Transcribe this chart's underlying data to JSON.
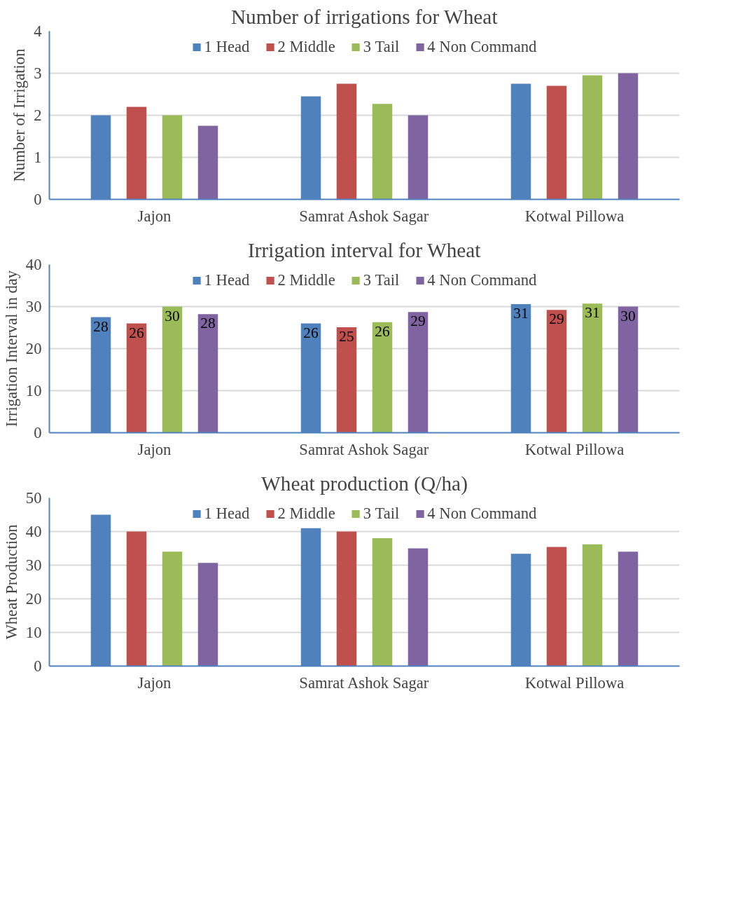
{
  "chart_data": [
    {
      "type": "bar",
      "title": "Number of irrigations for Wheat",
      "ylabel": "Number of Irrigation",
      "categories": [
        "Jajon",
        "Samrat Ashok Sagar",
        "Kotwal Pillowa"
      ],
      "ylim": [
        0,
        4
      ],
      "yticks": [
        0,
        1,
        2,
        3,
        4
      ],
      "grid": "y",
      "legend": "top",
      "series": [
        {
          "name": "1 Head",
          "color": "#4f81bd",
          "values": [
            2,
            2.45,
            2.75
          ]
        },
        {
          "name": "2 Middle",
          "color": "#c0504d",
          "values": [
            2.2,
            2.75,
            2.7
          ]
        },
        {
          "name": "3 Tail",
          "color": "#9bbb59",
          "values": [
            2,
            2.27,
            2.95
          ]
        },
        {
          "name": "4 Non Command",
          "color": "#8064a2",
          "values": [
            1.75,
            2,
            3
          ]
        }
      ]
    },
    {
      "type": "bar",
      "title": "Irrigation interval for Wheat",
      "ylabel": "Irrigation Interval in day",
      "categories": [
        "Jajon",
        "Samrat Ashok Sagar",
        "Kotwal Pillowa"
      ],
      "ylim": [
        0,
        40
      ],
      "yticks": [
        0,
        10,
        20,
        30,
        40
      ],
      "grid": "y",
      "legend": "top",
      "series": [
        {
          "name": "1 Head",
          "color": "#4f81bd",
          "values": [
            27.5,
            26,
            30.6
          ],
          "value_labels": [
            "28",
            "26",
            "31"
          ]
        },
        {
          "name": "2 Middle",
          "color": "#c0504d",
          "values": [
            26,
            25.1,
            29.2
          ],
          "value_labels": [
            "26",
            "25",
            "29"
          ]
        },
        {
          "name": "3 Tail",
          "color": "#9bbb59",
          "values": [
            30,
            26.3,
            30.7
          ],
          "value_labels": [
            "30",
            "26",
            "31"
          ]
        },
        {
          "name": "4 Non Command",
          "color": "#8064a2",
          "values": [
            28.2,
            28.7,
            30
          ],
          "value_labels": [
            "28",
            "29",
            "30"
          ]
        }
      ]
    },
    {
      "type": "bar",
      "title": "Wheat production (Q/ha)",
      "ylabel": "Wheat Production",
      "categories": [
        "Jajon",
        "Samrat Ashok Sagar",
        "Kotwal Pillowa"
      ],
      "ylim": [
        0,
        50
      ],
      "yticks": [
        0,
        10,
        20,
        30,
        40,
        50
      ],
      "grid": "y",
      "legend": "top",
      "series": [
        {
          "name": "1 Head",
          "color": "#4f81bd",
          "values": [
            45,
            41,
            33.4
          ]
        },
        {
          "name": "2 Middle",
          "color": "#c0504d",
          "values": [
            40,
            40,
            35.4
          ]
        },
        {
          "name": "3 Tail",
          "color": "#9bbb59",
          "values": [
            34,
            38,
            36.2
          ]
        },
        {
          "name": "4 Non Command",
          "color": "#8064a2",
          "values": [
            30.7,
            35,
            34
          ]
        }
      ]
    }
  ]
}
